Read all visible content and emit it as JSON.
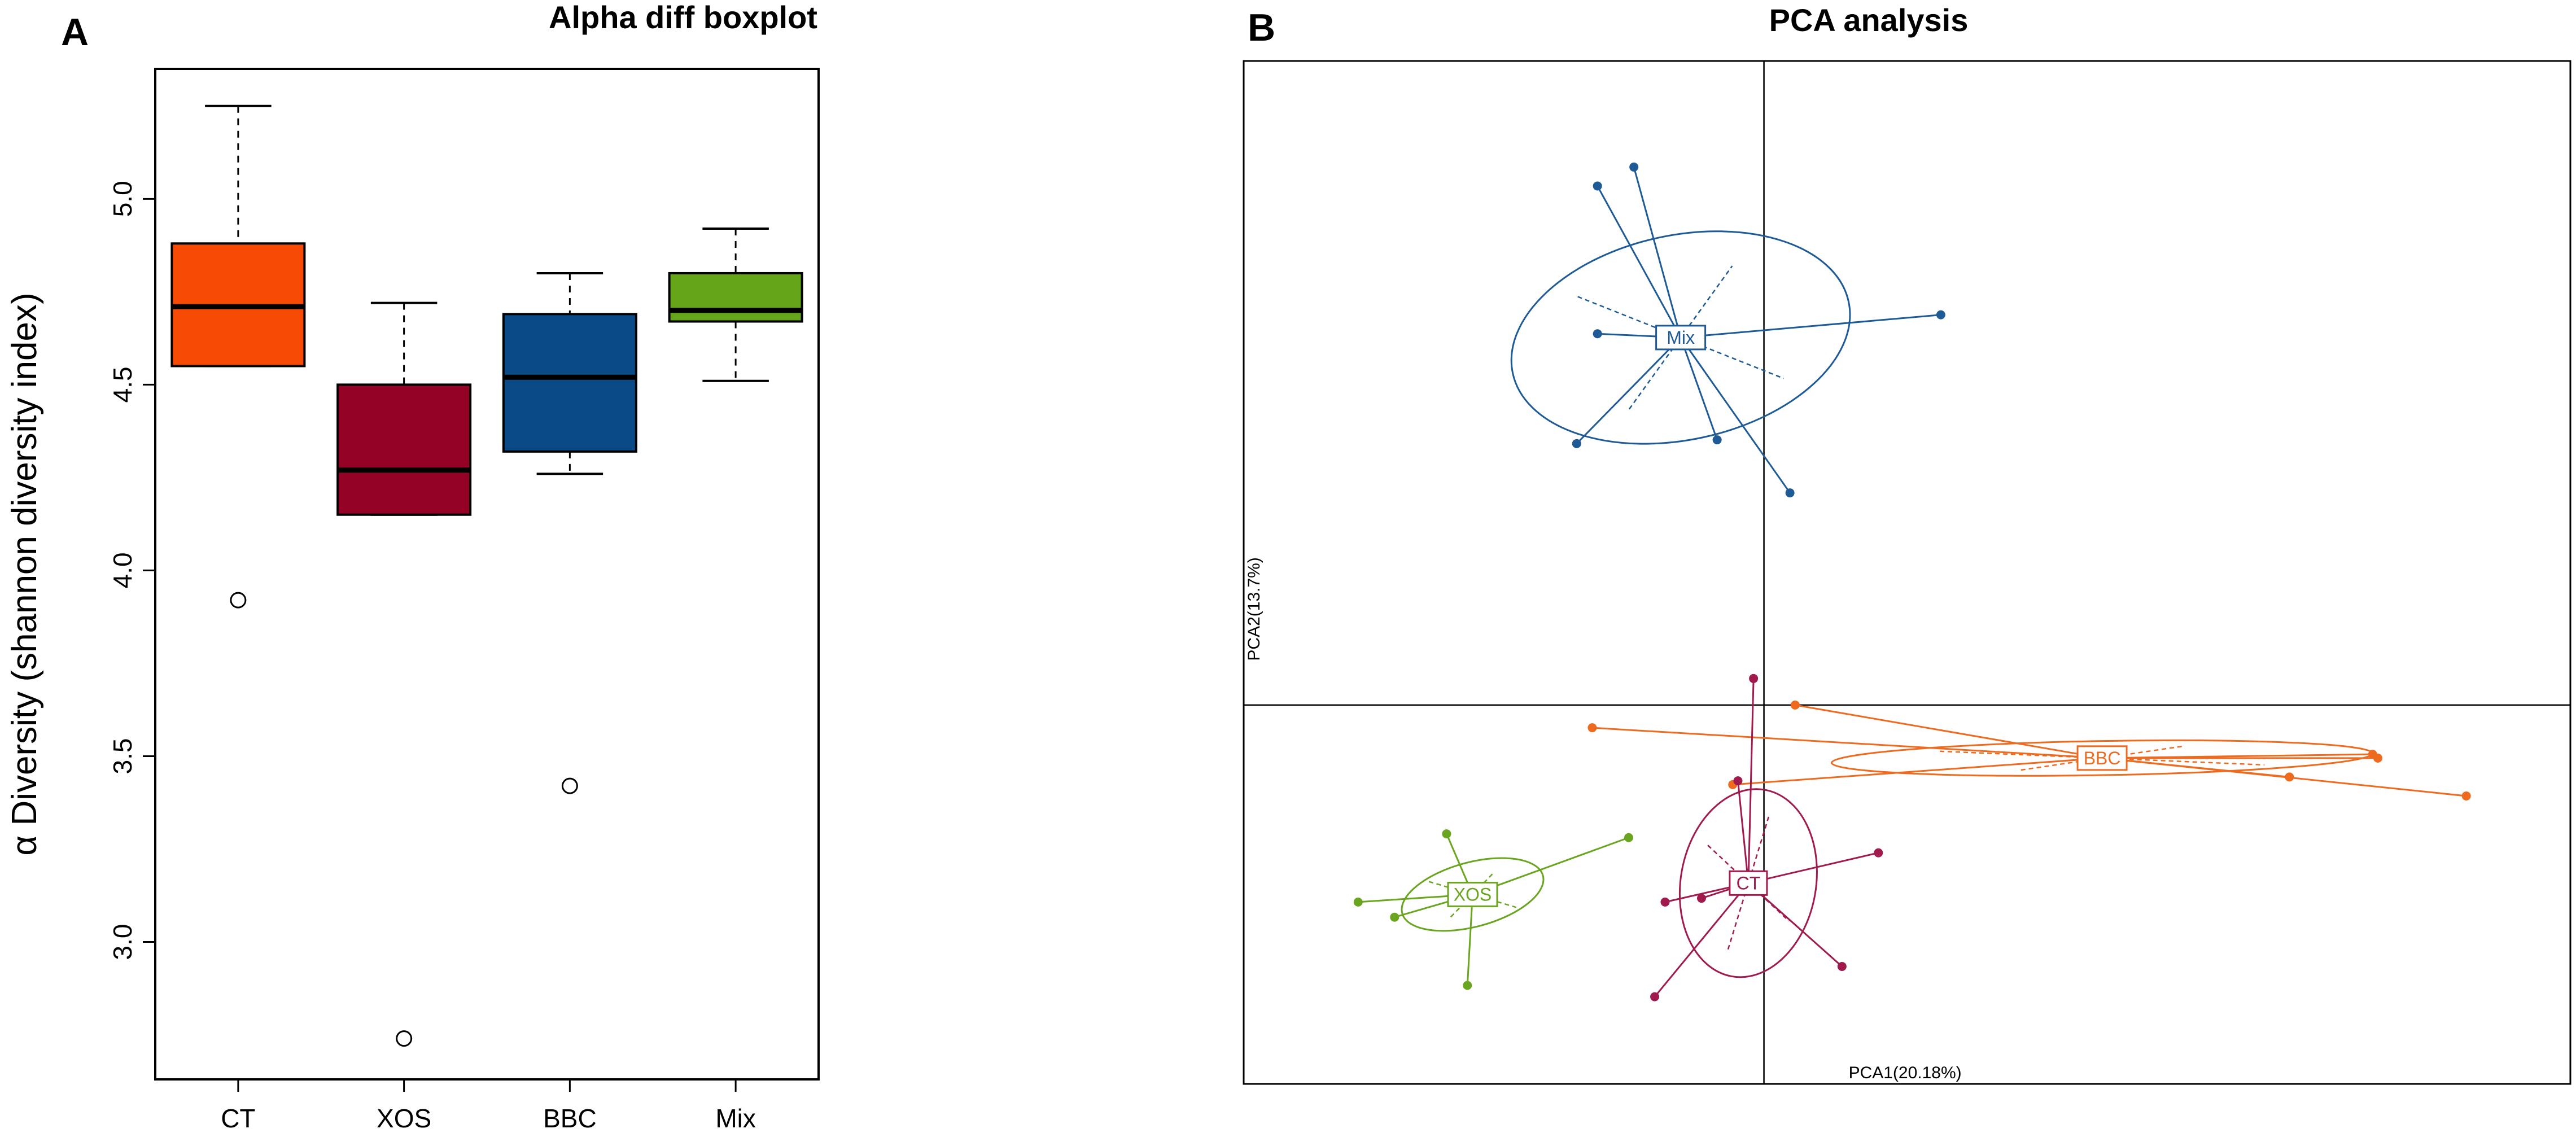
{
  "panels": {
    "a_letter": "A",
    "b_letter": "B"
  },
  "chart_data": [
    {
      "type": "boxplot",
      "title": "Alpha diff boxplot",
      "xlabel": "",
      "ylabel": "α Diversity (shannon diversity index)",
      "ylim": [
        2.63,
        5.35
      ],
      "yticks": [
        3.0,
        3.5,
        4.0,
        4.5,
        5.0
      ],
      "ytick_labels": [
        "3.0",
        "3.5",
        "4.0",
        "4.5",
        "5.0"
      ],
      "categories": [
        "CT",
        "XOS",
        "BBC",
        "Mix"
      ],
      "boxes": [
        {
          "name": "CT",
          "whisker_low": 4.55,
          "q1": 4.55,
          "median": 4.71,
          "q3": 4.88,
          "whisker_high": 5.25,
          "outliers": [
            3.92
          ],
          "color": "#F64A05"
        },
        {
          "name": "XOS",
          "whisker_low": 4.15,
          "q1": 4.15,
          "median": 4.27,
          "q3": 4.5,
          "whisker_high": 4.72,
          "outliers": [
            2.74
          ],
          "color": "#940325"
        },
        {
          "name": "BBC",
          "whisker_low": 4.26,
          "q1": 4.32,
          "median": 4.52,
          "q3": 4.69,
          "whisker_high": 4.8,
          "outliers": [
            3.42
          ],
          "color": "#0A4B87"
        },
        {
          "name": "Mix",
          "whisker_low": 4.51,
          "q1": 4.67,
          "median": 4.7,
          "q3": 4.8,
          "whisker_high": 4.92,
          "outliers": [],
          "color": "#64A51A"
        }
      ]
    },
    {
      "type": "scatter",
      "title": "PCA analysis",
      "xlabel": "PCA1(20.18%)",
      "ylabel": "PCA2(13.7%)",
      "xlim": [
        -1.0,
        1.55
      ],
      "ylim": [
        -1.0,
        1.7
      ],
      "groups": [
        {
          "name": "Mix",
          "color": "#1E5A96",
          "centroid": [
            -0.16,
            0.97
          ],
          "ellipse": {
            "rx": 0.33,
            "ry": 0.27,
            "angle": -12
          },
          "points": [
            [
              -0.25,
              1.42
            ],
            [
              -0.32,
              1.37
            ],
            [
              -0.32,
              0.98
            ],
            [
              -0.36,
              0.69
            ],
            [
              -0.09,
              0.7
            ],
            [
              0.05,
              0.56
            ],
            [
              0.34,
              1.03
            ]
          ]
        },
        {
          "name": "BBC",
          "color": "#EE6A1E",
          "centroid": [
            0.65,
            -0.14
          ],
          "ellipse": {
            "rx": 0.52,
            "ry": 0.045,
            "angle": -1
          },
          "points": [
            [
              -0.33,
              -0.06
            ],
            [
              0.06,
              0.0
            ],
            [
              -0.06,
              -0.21
            ],
            [
              1.17,
              -0.13
            ],
            [
              1.18,
              -0.14
            ],
            [
              1.01,
              -0.19
            ],
            [
              1.35,
              -0.24
            ]
          ]
        },
        {
          "name": "CT",
          "color": "#A01A4E",
          "centroid": [
            -0.03,
            -0.47
          ],
          "ellipse": {
            "rx": 0.13,
            "ry": 0.25,
            "angle": 10
          },
          "points": [
            [
              -0.02,
              0.07
            ],
            [
              -0.05,
              -0.2
            ],
            [
              -0.19,
              -0.52
            ],
            [
              -0.12,
              -0.51
            ],
            [
              0.22,
              -0.39
            ],
            [
              0.15,
              -0.69
            ],
            [
              -0.21,
              -0.77
            ]
          ]
        },
        {
          "name": "XOS",
          "color": "#6AA520",
          "centroid": [
            -0.56,
            -0.5
          ],
          "ellipse": {
            "rx": 0.14,
            "ry": 0.085,
            "angle": -15
          },
          "points": [
            [
              -0.61,
              -0.34
            ],
            [
              -0.78,
              -0.52
            ],
            [
              -0.71,
              -0.56
            ],
            [
              -0.57,
              -0.74
            ],
            [
              -0.26,
              -0.35
            ]
          ]
        }
      ]
    }
  ]
}
